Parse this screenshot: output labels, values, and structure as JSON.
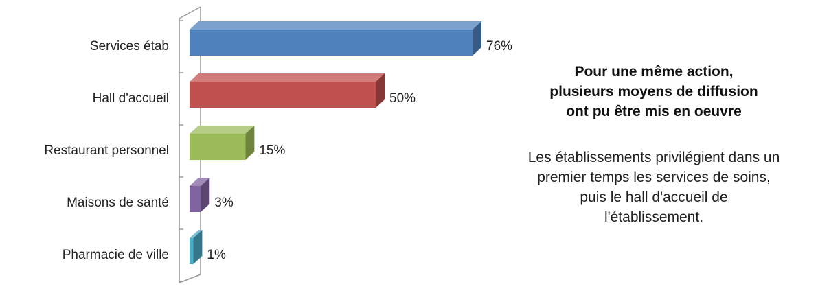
{
  "chart_data": {
    "type": "bar",
    "orientation": "horizontal",
    "style": "3d",
    "categories": [
      "Services étab",
      "Hall d'accueil",
      "Restaurant personnel",
      "Maisons de santé",
      "Pharmacie de ville"
    ],
    "values": [
      76,
      50,
      15,
      3,
      1
    ],
    "value_labels": [
      "76%",
      "50%",
      "15%",
      "3%",
      "1%"
    ],
    "unit": "%",
    "xlim": [
      0,
      76
    ],
    "colors": [
      "#4f81bd",
      "#c0504d",
      "#9bbb59",
      "#8064a2",
      "#4bacc6"
    ],
    "grid": false,
    "legend": "none"
  },
  "annotation": {
    "title_lines": [
      "Pour une même action,",
      "plusieurs moyens de diffusion",
      "ont pu être mis  en oeuvre"
    ],
    "body_lines": [
      "Les établissements privilégient dans un",
      "premier temps les services de soins,",
      "puis  le hall d'accueil de",
      "l'établissement."
    ]
  }
}
